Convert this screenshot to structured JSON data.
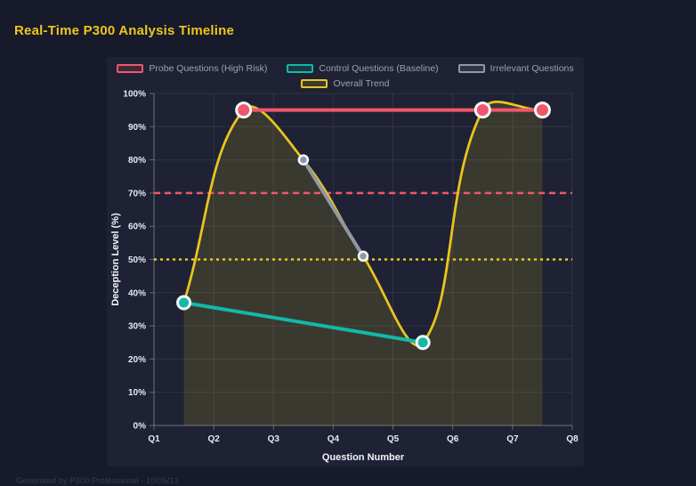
{
  "page": {
    "title": "Real-Time P300 Analysis Timeline",
    "footer": "Generated by P300 Professional - 10/05/13"
  },
  "colors": {
    "page_bg": "#161a2a",
    "panel_bg": "#1e2234",
    "title": "#f0c41f",
    "grid": "rgba(255,255,255,0.08)",
    "axis": "rgba(255,255,255,0.30)",
    "tick_label": "#e6e9f2",
    "axis_title": "#f2f4f9",
    "legend_text": "#9aa1b6",
    "footer_text": "#343c55",
    "point_border": "#f5f7fa"
  },
  "chart_data": {
    "type": "line",
    "title": "Real-Time P300 Analysis Timeline",
    "xlabel": "Question Number",
    "ylabel": "Deception Level (%)",
    "x_categories": [
      "Q1",
      "Q2",
      "Q3",
      "Q4",
      "Q5",
      "Q6",
      "Q7",
      "Q8"
    ],
    "x_range": [
      1,
      8
    ],
    "ylim": [
      0,
      100
    ],
    "y_tick_step": 10,
    "y_tick_suffix": "%",
    "grid": true,
    "legend_position": "top",
    "series": [
      {
        "name": "Probe Questions (High Risk)",
        "color": "#f2566b",
        "x": [
          2.5,
          6.5,
          7.5
        ],
        "y": [
          95,
          95,
          95
        ],
        "line_width": 4,
        "point_radius": 8,
        "point_border_width": 3,
        "smooth": 0,
        "fill": false
      },
      {
        "name": "Control Questions (Baseline)",
        "color": "#12b9a9",
        "x": [
          1.5,
          5.5
        ],
        "y": [
          37,
          25
        ],
        "line_width": 4,
        "point_radius": 7,
        "point_border_width": 3,
        "smooth": 0,
        "fill": false
      },
      {
        "name": "Irrelevant Questions",
        "color": "#9198a3",
        "x": [
          3.5,
          4.5
        ],
        "y": [
          80,
          51
        ],
        "line_width": 4,
        "point_radius": 5,
        "point_border_width": 2.5,
        "smooth": 0,
        "fill": false
      },
      {
        "name": "Overall Trend",
        "color": "#e9c51f",
        "x": [
          1.5,
          2.5,
          3.5,
          4.5,
          5.5,
          6.5,
          7.5
        ],
        "y": [
          37,
          95,
          80,
          51,
          25,
          95,
          95
        ],
        "line_width": 2.75,
        "point_radius": 0,
        "point_border_width": 0,
        "smooth": 0.4,
        "fill": true,
        "fill_color": "rgba(233,197,31,0.14)"
      }
    ],
    "reference_lines": [
      {
        "y": 70,
        "color": "#f2566b",
        "style": "dashed",
        "width": 2.5
      },
      {
        "y": 50,
        "color": "#e9c51f",
        "style": "dotted",
        "width": 2.5
      }
    ]
  }
}
